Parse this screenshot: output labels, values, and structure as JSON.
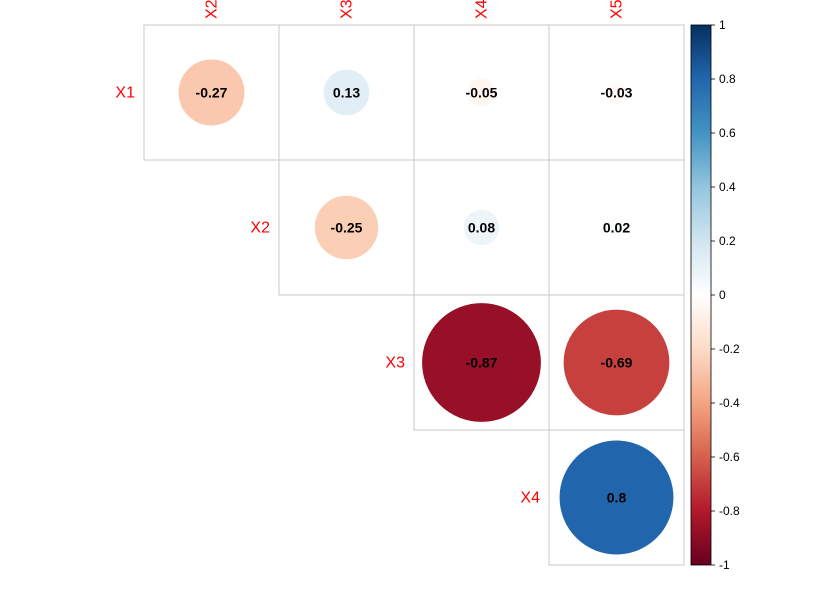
{
  "chart_data": {
    "type": "heatmap",
    "subtype": "correlation-circle-upper",
    "row_labels": [
      "X1",
      "X2",
      "X3",
      "X4"
    ],
    "col_labels": [
      "X2",
      "X3",
      "X4",
      "X5"
    ],
    "cells": [
      {
        "row": "X1",
        "col": "X2",
        "value": -0.27,
        "label": "-0.27"
      },
      {
        "row": "X1",
        "col": "X3",
        "value": 0.13,
        "label": "0.13"
      },
      {
        "row": "X1",
        "col": "X4",
        "value": -0.05,
        "label": "-0.05"
      },
      {
        "row": "X1",
        "col": "X5",
        "value": -0.03,
        "label": "-0.03"
      },
      {
        "row": "X2",
        "col": "X3",
        "value": -0.25,
        "label": "-0.25"
      },
      {
        "row": "X2",
        "col": "X4",
        "value": 0.08,
        "label": "0.08"
      },
      {
        "row": "X2",
        "col": "X5",
        "value": 0.02,
        "label": "0.02"
      },
      {
        "row": "X3",
        "col": "X4",
        "value": -0.87,
        "label": "-0.87"
      },
      {
        "row": "X3",
        "col": "X5",
        "value": -0.69,
        "label": "-0.69"
      },
      {
        "row": "X4",
        "col": "X5",
        "value": 0.8,
        "label": "0.8"
      }
    ],
    "colorbar": {
      "range": [
        -1,
        1
      ],
      "ticks": [
        "1",
        "0.8",
        "0.6",
        "0.4",
        "0.2",
        "0",
        "-0.2",
        "-0.4",
        "-0.6",
        "-0.8",
        "-1"
      ],
      "tick_values": [
        1,
        0.8,
        0.6,
        0.4,
        0.2,
        0,
        -0.2,
        -0.4,
        -0.6,
        -0.8,
        -1
      ],
      "palette": [
        "#67001F",
        "#B2182B",
        "#D6604D",
        "#F4A582",
        "#FDDBC7",
        "#FFFFFF",
        "#D1E5F0",
        "#92C5DE",
        "#4393C3",
        "#2166AC",
        "#053061"
      ],
      "placement": "right"
    },
    "label_color": "#FF0000",
    "grid": true
  }
}
